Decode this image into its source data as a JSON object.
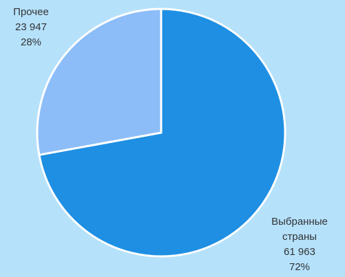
{
  "chart_data": {
    "type": "pie",
    "categories": [
      "Выбранные страны",
      "Прочее"
    ],
    "values": [
      61963,
      23947
    ],
    "value_labels": [
      "61 963",
      "23 947"
    ],
    "percents": [
      72,
      28
    ],
    "percent_labels": [
      "72%",
      "28%"
    ],
    "colors": [
      "#1e8fe3",
      "#8cbdf8"
    ],
    "background": "#b5e1fb"
  }
}
